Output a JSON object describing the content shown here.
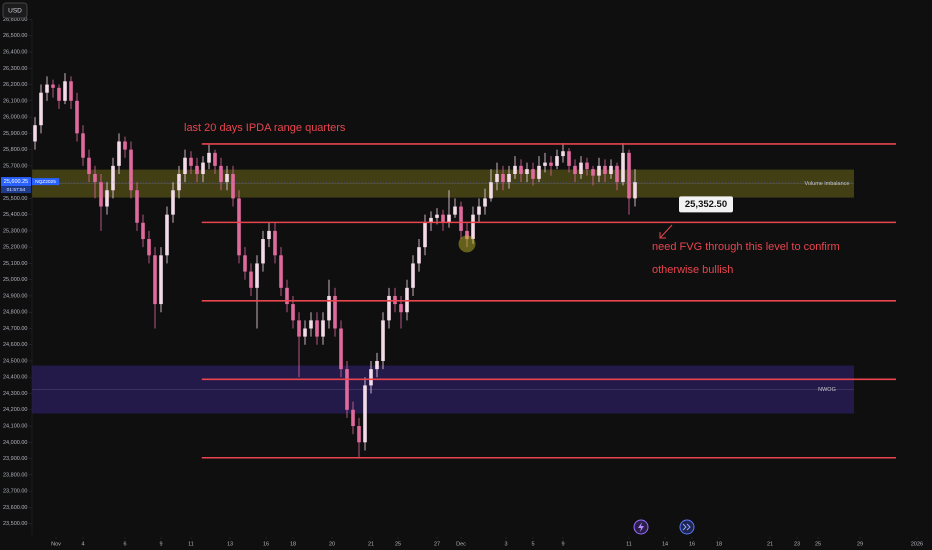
{
  "chart_data": {
    "type": "candlestick",
    "currency": "USD",
    "symbol": "NQZ2025",
    "countdown": "01:57:54",
    "last_price": {
      "value": 25600.25,
      "label": "25,600.25"
    },
    "up_color": "#f3dbe8",
    "down_color": "#e06a9e",
    "ylim": [
      23430,
      26720
    ],
    "xlim": [
      -0.5,
      149.5
    ],
    "yticks": [
      {
        "value": 26600,
        "label": "26,600.00"
      },
      {
        "value": 26500,
        "label": "26,500.00"
      },
      {
        "value": 26400,
        "label": "26,400.00"
      },
      {
        "value": 26300,
        "label": "26,300.00"
      },
      {
        "value": 26200,
        "label": "26,200.00"
      },
      {
        "value": 26100,
        "label": "26,100.00"
      },
      {
        "value": 26000,
        "label": "26,000.00"
      },
      {
        "value": 25900,
        "label": "25,900.00"
      },
      {
        "value": 25800,
        "label": "25,800.00"
      },
      {
        "value": 25700,
        "label": "25,700.00"
      },
      {
        "value": 25500,
        "label": "25,500.00"
      },
      {
        "value": 25400,
        "label": "25,400.00"
      },
      {
        "value": 25300,
        "label": "25,300.00"
      },
      {
        "value": 25200,
        "label": "25,200.00"
      },
      {
        "value": 25100,
        "label": "25,100.00"
      },
      {
        "value": 25000,
        "label": "25,000.00"
      },
      {
        "value": 24900,
        "label": "24,900.00"
      },
      {
        "value": 24800,
        "label": "24,800.00"
      },
      {
        "value": 24700,
        "label": "24,700.00"
      },
      {
        "value": 24600,
        "label": "24,600.00"
      },
      {
        "value": 24500,
        "label": "24,500.00"
      },
      {
        "value": 24400,
        "label": "24,400.00"
      },
      {
        "value": 24300,
        "label": "24,300.00"
      },
      {
        "value": 24200,
        "label": "24,200.00"
      },
      {
        "value": 24100,
        "label": "24,100.00"
      },
      {
        "value": 24000,
        "label": "24,000.00"
      },
      {
        "value": 23900,
        "label": "23,900.00"
      },
      {
        "value": 23800,
        "label": "23,800.00"
      },
      {
        "value": 23700,
        "label": "23,700.00"
      },
      {
        "value": 23600,
        "label": "23,600.00"
      },
      {
        "value": 23500,
        "label": "23,500.00"
      }
    ],
    "xticks": [
      {
        "value": 3.5,
        "label": "Nov"
      },
      {
        "value": 8,
        "label": "4"
      },
      {
        "value": 15,
        "label": "6"
      },
      {
        "value": 21,
        "label": "9"
      },
      {
        "value": 26,
        "label": "11"
      },
      {
        "value": 32.5,
        "label": "13"
      },
      {
        "value": 38.5,
        "label": "16"
      },
      {
        "value": 43,
        "label": "18"
      },
      {
        "value": 49.5,
        "label": "20"
      },
      {
        "value": 56,
        "label": "21"
      },
      {
        "value": 60.5,
        "label": "25"
      },
      {
        "value": 67,
        "label": "27"
      },
      {
        "value": 71,
        "label": "Dec"
      },
      {
        "value": 78.5,
        "label": "3"
      },
      {
        "value": 83,
        "label": "5"
      },
      {
        "value": 88,
        "label": "9"
      },
      {
        "value": 99,
        "label": "11"
      },
      {
        "value": 105,
        "label": "14"
      },
      {
        "value": 109.5,
        "label": "16"
      },
      {
        "value": 114,
        "label": "18"
      },
      {
        "value": 122.5,
        "label": "21"
      },
      {
        "value": 127,
        "label": "23"
      },
      {
        "value": 130.5,
        "label": "25"
      },
      {
        "value": 137.5,
        "label": "29"
      },
      {
        "value": 147,
        "label": "2026"
      }
    ],
    "candles": [
      [
        25850,
        26000,
        25800,
        25950
      ],
      [
        25950,
        26200,
        25900,
        26150
      ],
      [
        26150,
        26250,
        26100,
        26200
      ],
      [
        26200,
        26230,
        26120,
        26180
      ],
      [
        26180,
        26200,
        26050,
        26100
      ],
      [
        26100,
        26270,
        26080,
        26220
      ],
      [
        26220,
        26250,
        26050,
        26100
      ],
      [
        26100,
        26150,
        25850,
        25900
      ],
      [
        25900,
        25950,
        25700,
        25750
      ],
      [
        25750,
        25800,
        25600,
        25650
      ],
      [
        25650,
        25700,
        25500,
        25600
      ],
      [
        25600,
        25650,
        25300,
        25450
      ],
      [
        25450,
        25600,
        25400,
        25550
      ],
      [
        25550,
        25750,
        25500,
        25700
      ],
      [
        25700,
        25900,
        25650,
        25850
      ],
      [
        25850,
        25880,
        25750,
        25800
      ],
      [
        25800,
        25850,
        25500,
        25550
      ],
      [
        25550,
        25600,
        25300,
        25350
      ],
      [
        25350,
        25400,
        25200,
        25250
      ],
      [
        25250,
        25300,
        25100,
        25150
      ],
      [
        25150,
        25200,
        24700,
        24850
      ],
      [
        24850,
        25200,
        24800,
        25150
      ],
      [
        25150,
        25450,
        25100,
        25400
      ],
      [
        25400,
        25600,
        25350,
        25550
      ],
      [
        25550,
        25700,
        25500,
        25650
      ],
      [
        25650,
        25800,
        25600,
        25750
      ],
      [
        25750,
        25790,
        25650,
        25700
      ],
      [
        25700,
        25750,
        25600,
        25650
      ],
      [
        25650,
        25760,
        25600,
        25720
      ],
      [
        25720,
        25830,
        25680,
        25780
      ],
      [
        25780,
        25800,
        25650,
        25700
      ],
      [
        25700,
        25750,
        25550,
        25600
      ],
      [
        25600,
        25700,
        25550,
        25650
      ],
      [
        25650,
        25700,
        25450,
        25500
      ],
      [
        25500,
        25550,
        25100,
        25150
      ],
      [
        25150,
        25200,
        25000,
        25050
      ],
      [
        25050,
        25100,
        24900,
        24950
      ],
      [
        24950,
        25150,
        24700,
        25100
      ],
      [
        25100,
        25300,
        25050,
        25250
      ],
      [
        25250,
        25350,
        25200,
        25300
      ],
      [
        25300,
        25350,
        25100,
        25150
      ],
      [
        25150,
        25200,
        24900,
        24950
      ],
      [
        24950,
        25000,
        24800,
        24850
      ],
      [
        24850,
        24900,
        24700,
        24750
      ],
      [
        24750,
        24800,
        24400,
        24650
      ],
      [
        24650,
        24750,
        24600,
        24700
      ],
      [
        24700,
        24800,
        24650,
        24750
      ],
      [
        24750,
        24800,
        24600,
        24650
      ],
      [
        24650,
        24800,
        24600,
        24750
      ],
      [
        24750,
        25000,
        24700,
        24900
      ],
      [
        24900,
        24950,
        24650,
        24700
      ],
      [
        24700,
        24750,
        24400,
        24450
      ],
      [
        24450,
        24500,
        24150,
        24200
      ],
      [
        24200,
        24250,
        24050,
        24100
      ],
      [
        24100,
        24150,
        23900,
        24000
      ],
      [
        24000,
        24400,
        23950,
        24350
      ],
      [
        24350,
        24500,
        24300,
        24450
      ],
      [
        24450,
        24550,
        24400,
        24500
      ],
      [
        24500,
        24800,
        24450,
        24750
      ],
      [
        24750,
        24950,
        24700,
        24900
      ],
      [
        24900,
        24950,
        24800,
        24850
      ],
      [
        24850,
        24900,
        24700,
        24800
      ],
      [
        24800,
        25000,
        24750,
        24950
      ],
      [
        24950,
        25150,
        24900,
        25100
      ],
      [
        25100,
        25250,
        25050,
        25200
      ],
      [
        25200,
        25400,
        25150,
        25350
      ],
      [
        25350,
        25420,
        25300,
        25380
      ],
      [
        25380,
        25440,
        25340,
        25400
      ],
      [
        25400,
        25430,
        25300,
        25350
      ],
      [
        25350,
        25550,
        25320,
        25400
      ],
      [
        25400,
        25500,
        25380,
        25450
      ],
      [
        25450,
        25480,
        25250,
        25300
      ],
      [
        25300,
        25350,
        25200,
        25250
      ],
      [
        25250,
        25450,
        25220,
        25400
      ],
      [
        25400,
        25500,
        25350,
        25450
      ],
      [
        25450,
        25560,
        25400,
        25500
      ],
      [
        25500,
        25680,
        25480,
        25600
      ],
      [
        25600,
        25720,
        25550,
        25650
      ],
      [
        25650,
        25700,
        25550,
        25600
      ],
      [
        25600,
        25700,
        25560,
        25650
      ],
      [
        25650,
        25760,
        25620,
        25700
      ],
      [
        25700,
        25740,
        25600,
        25650
      ],
      [
        25650,
        25720,
        25600,
        25680
      ],
      [
        25680,
        25720,
        25580,
        25620
      ],
      [
        25620,
        25760,
        25600,
        25700
      ],
      [
        25700,
        25780,
        25660,
        25720
      ],
      [
        25720,
        25760,
        25640,
        25700
      ],
      [
        25700,
        25800,
        25680,
        25760
      ],
      [
        25760,
        25840,
        25720,
        25790
      ],
      [
        25790,
        25810,
        25660,
        25700
      ],
      [
        25700,
        25740,
        25600,
        25650
      ],
      [
        25650,
        25760,
        25620,
        25720
      ],
      [
        25720,
        25750,
        25640,
        25680
      ],
      [
        25680,
        25700,
        25580,
        25640
      ],
      [
        25640,
        25750,
        25600,
        25700
      ],
      [
        25700,
        25740,
        25600,
        25650
      ],
      [
        25650,
        25740,
        25620,
        25700
      ],
      [
        25700,
        25720,
        25550,
        25600
      ],
      [
        25600,
        25840,
        25580,
        25780
      ],
      [
        25780,
        25800,
        25400,
        25500
      ],
      [
        25500,
        25680,
        25450,
        25600
      ]
    ],
    "zones": [
      {
        "name": "Volume imbalance",
        "from": 25505,
        "to": 25677,
        "x_end": 136.5,
        "color": "#5a5418"
      },
      {
        "name": "NWOG",
        "from": 24177,
        "to": 24472,
        "x_end": 136.5,
        "color": "#2c1f63"
      }
    ],
    "levels_x": [
      27.8,
      143.5
    ],
    "level_color": "#e8454f",
    "levels": [
      {
        "value": 25835
      },
      {
        "value": 25352.5,
        "label": "25,352.50"
      },
      {
        "value": 24870
      },
      {
        "value": 24387.5
      },
      {
        "value": 23905
      }
    ],
    "highlight": {
      "x": 72,
      "y": 25220,
      "color": "#c9c22a"
    },
    "annotations": [
      "last 20 days IPDA range quarters",
      "need FVG through this level to confirm",
      "otherwise bullish"
    ]
  }
}
